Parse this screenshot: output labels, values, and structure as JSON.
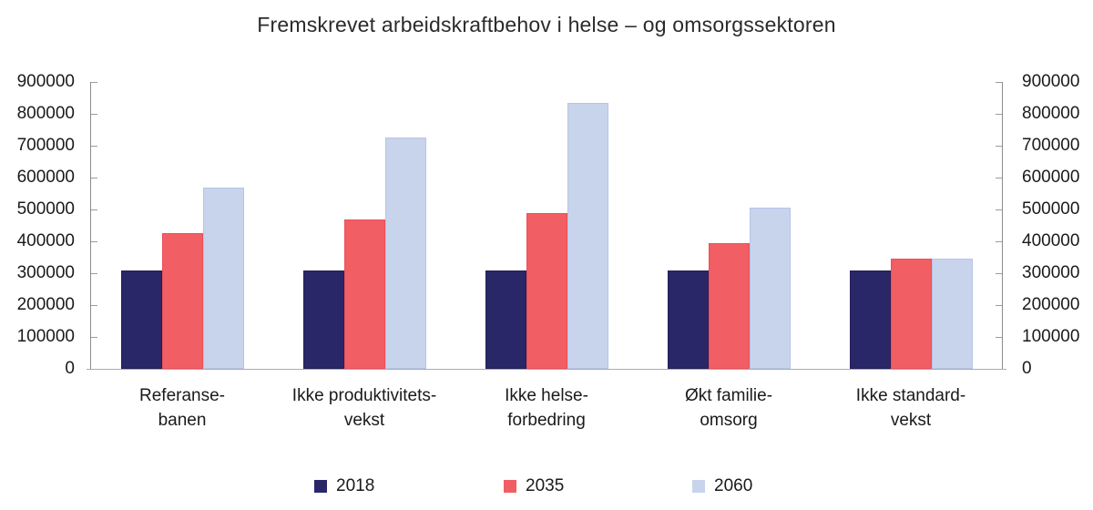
{
  "chart_data": {
    "type": "bar",
    "title": "Fremskrevet arbeidskraftbehov i helse – og omsorgssektoren",
    "categories": [
      "Referansebanen",
      "Ikke produktivitetsvekst",
      "Ikke helseforbedring",
      "Økt familieomsorg",
      "Ikke standardvekst"
    ],
    "category_label_lines": [
      [
        "Referanse-",
        "banen"
      ],
      [
        "Ikke produktivitets-",
        "vekst"
      ],
      [
        "Ikke helse-",
        "forbedring"
      ],
      [
        "Økt familie-",
        "omsorg"
      ],
      [
        "Ikke standard-",
        "vekst"
      ]
    ],
    "series": [
      {
        "name": "2018",
        "color": "#2A2768",
        "border": "#221F58",
        "values": [
          310000,
          310000,
          310000,
          310000,
          310000
        ]
      },
      {
        "name": "2035",
        "color": "#F15E63",
        "border": "#ED4F58",
        "values": [
          425000,
          470000,
          488000,
          395000,
          345000
        ]
      },
      {
        "name": "2060",
        "color": "#C8D4EC",
        "border": "#B6C4E7",
        "values": [
          570000,
          725000,
          835000,
          505000,
          345000
        ]
      }
    ],
    "xlabel": "",
    "ylabel": "",
    "ylim": [
      0,
      900000
    ],
    "yticks": [
      0,
      100000,
      200000,
      300000,
      400000,
      500000,
      600000,
      700000,
      800000,
      900000
    ],
    "grid": false,
    "dual_y_axis": true,
    "legend_position": "bottom"
  },
  "colors": {
    "axis_line": "#8c8c8c",
    "tick_mark": "#9c9c9c",
    "baseline": "#ababab",
    "title_text": "#2b2b2b",
    "label_text": "#1a1a1a",
    "background": "#ffffff"
  }
}
